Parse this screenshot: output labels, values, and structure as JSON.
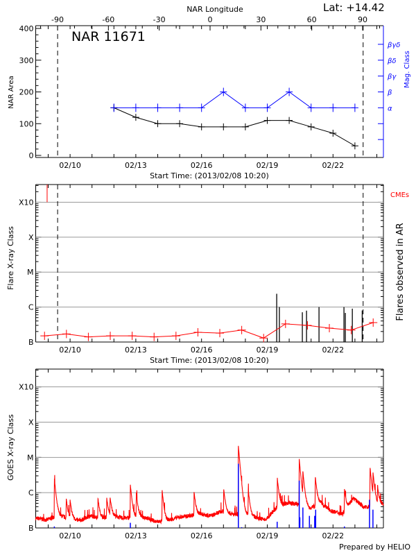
{
  "header": {
    "region_title": "NAR 11671",
    "latitude": "Lat: +14.42",
    "credit": "Prepared by HELIO"
  },
  "colors": {
    "area": "#000000",
    "mag_class": "#0000ff",
    "flares_in_ar": "#ff0000",
    "cme": "#ff0000",
    "flare_bars": "#000000",
    "goes_flux": "#ff0000",
    "goes_events": "#0000ff",
    "grid": "#999999"
  },
  "chart_data": [
    {
      "type": "line",
      "panel": "top",
      "xlabel": "Start Time: (2013/02/08 10:20)",
      "ylabel": "NAR Area",
      "y2label": "Mag. Class",
      "x2label": "NAR Longitude",
      "x_range": [
        "02/08 10:20",
        "02/24 07:15"
      ],
      "x_ticks": [
        "02/10",
        "02/13",
        "02/16",
        "02/19",
        "02/22"
      ],
      "x2_ticks": [
        -90,
        -60,
        -30,
        0,
        30,
        60,
        90
      ],
      "ylim": [
        -7,
        408
      ],
      "y_ticks": [
        0,
        100,
        200,
        300,
        400
      ],
      "y2_ticks": [
        {
          "value": 50,
          "label": ""
        },
        {
          "value": 100,
          "label": ""
        },
        {
          "value": 150,
          "label": "α"
        },
        {
          "value": 200,
          "label": "β"
        },
        {
          "value": 250,
          "label": "βγ"
        },
        {
          "value": 300,
          "label": "βδ"
        },
        {
          "value": 350,
          "label": "βγδ"
        }
      ],
      "limb_lines": [
        {
          "time": "02/09 10:20",
          "longitude": -90
        },
        {
          "time": "02/23 09:00",
          "longitude": 90
        }
      ],
      "x": [
        "02/12 00:00",
        "02/13 00:00",
        "02/14 00:00",
        "02/15 00:00",
        "02/16 00:00",
        "02/17 00:00",
        "02/18 00:00",
        "02/19 00:00",
        "02/20 00:00",
        "02/21 00:00",
        "02/22 00:00",
        "02/23 00:00"
      ],
      "series": [
        {
          "key": "area",
          "values": [
            150,
            120,
            100,
            100,
            90,
            90,
            90,
            110,
            110,
            90,
            70,
            30
          ]
        },
        {
          "key": "mag_class",
          "values": [
            "α",
            "α",
            "α",
            "α",
            "α",
            "β",
            "α",
            "α",
            "β",
            "α",
            "α",
            "α"
          ]
        }
      ]
    },
    {
      "type": "scatter",
      "panel": "middle",
      "xlabel": "Start Time: (2013/02/08 10:20)",
      "ylabel": "Flare X-ray Class",
      "y2label": "Flares observed in AR",
      "cme_label": "CMEs",
      "y_scale": "log",
      "ylim": [
        1e-07,
        0.0032
      ],
      "y_ticks": [
        {
          "value": 1e-07,
          "label": "B"
        },
        {
          "value": 1e-06,
          "label": "C"
        },
        {
          "value": 1e-05,
          "label": "M"
        },
        {
          "value": 0.0001,
          "label": "X"
        },
        {
          "value": 0.001,
          "label": "X10"
        }
      ],
      "x_ticks": [
        "02/10",
        "02/13",
        "02/16",
        "02/19",
        "02/22"
      ],
      "grid": true,
      "daily_flux": {
        "x": [
          "02/08 20:00",
          "02/09 20:00",
          "02/10 20:00",
          "02/11 20:00",
          "02/12 20:00",
          "02/13 20:00",
          "02/14 20:00",
          "02/15 20:00",
          "02/16 20:00",
          "02/17 20:00",
          "02/18 20:00",
          "02/19 20:00",
          "02/20 20:00",
          "02/21 20:00",
          "02/22 20:00",
          "02/23 20:00"
        ],
        "values": [
          1.5e-07,
          1.7e-07,
          1.4e-07,
          1.5e-07,
          1.5e-07,
          1.4e-07,
          1.5e-07,
          1.9e-07,
          1.8e-07,
          2.2e-07,
          1.3e-07,
          3.3e-07,
          3e-07,
          2.5e-07,
          2.2e-07,
          3.6e-07
        ]
      },
      "flares": [
        {
          "time": "02/19 10:20",
          "peak": 2.4e-06
        },
        {
          "time": "02/19 13:15",
          "peak": 1e-06
        },
        {
          "time": "02/20 14:25",
          "peak": 7.1e-07
        },
        {
          "time": "02/20 19:00",
          "peak": 7.9e-07
        },
        {
          "time": "02/21 08:40",
          "peak": 1e-06
        },
        {
          "time": "02/22 12:00",
          "peak": 1e-06
        },
        {
          "time": "02/22 13:30",
          "peak": 6.8e-07
        },
        {
          "time": "02/22 21:10",
          "peak": 9e-07
        },
        {
          "time": "02/23 08:00",
          "peak": 8e-07
        }
      ],
      "cmes": [
        "02/08 22:50"
      ],
      "limb_lines": [
        "02/09 10:20",
        "02/23 09:00"
      ]
    },
    {
      "type": "line",
      "panel": "bottom",
      "ylabel": "GOES X-ray Class",
      "y_scale": "log",
      "ylim": [
        1e-07,
        0.0032
      ],
      "y_ticks": [
        {
          "value": 1e-07,
          "label": "B"
        },
        {
          "value": 1e-06,
          "label": "C"
        },
        {
          "value": 1e-05,
          "label": "M"
        },
        {
          "value": 0.0001,
          "label": "X"
        },
        {
          "value": 0.001,
          "label": "X10"
        }
      ],
      "x_ticks": [
        "02/10",
        "02/13",
        "02/16",
        "02/19",
        "02/22"
      ],
      "grid": true,
      "background": {
        "x": [
          "02/08 10:20",
          "02/08 22:20",
          "02/09 10:20",
          "02/09 22:20",
          "02/10 10:20",
          "02/10 22:20",
          "02/11 10:20",
          "02/11 22:20",
          "02/12 10:20",
          "02/12 22:20",
          "02/13 10:20",
          "02/13 22:20",
          "02/14 10:20",
          "02/14 22:20",
          "02/15 10:20",
          "02/15 22:20",
          "02/16 10:20",
          "02/16 22:20",
          "02/17 10:20",
          "02/17 22:20",
          "02/18 10:20",
          "02/18 22:20",
          "02/19 10:20",
          "02/19 22:20",
          "02/20 10:20",
          "02/20 22:20",
          "02/21 10:20",
          "02/21 22:20",
          "02/22 10:20",
          "02/22 22:20",
          "02/23 10:20",
          "02/23 22:20",
          "02/24 10:20"
        ],
        "values": [
          1.9e-07,
          1.7e-07,
          2.2e-07,
          1.9e-07,
          1.6e-07,
          2.2e-07,
          1.9e-07,
          2.2e-07,
          1.9e-07,
          2e-07,
          2e-07,
          1.5e-07,
          1.6e-07,
          2e-07,
          2.2e-07,
          2.5e-07,
          2.2e-07,
          3e-07,
          2.4e-07,
          2.4e-07,
          2e-07,
          1.7e-07,
          3.8e-07,
          5.1e-07,
          4.7e-07,
          3.5e-07,
          5.1e-07,
          3e-07,
          2.5e-07,
          7e-07,
          3.8e-07,
          4.4e-07,
          4.7e-07
        ]
      },
      "peaks": [
        {
          "time": "02/09 06:45",
          "value": 2.4e-06
        },
        {
          "time": "02/09 19:45",
          "value": 5e-07
        },
        {
          "time": "02/10 00:00",
          "value": 4e-07
        },
        {
          "time": "02/11 06:30",
          "value": 5e-07
        },
        {
          "time": "02/11 16:05",
          "value": 5.2e-07
        },
        {
          "time": "02/11 19:45",
          "value": 5.2e-07
        },
        {
          "time": "02/12 18:00",
          "value": 1.5e-06
        },
        {
          "time": "02/13 00:30",
          "value": 8e-07
        },
        {
          "time": "02/14 04:50",
          "value": 1e-06
        },
        {
          "time": "02/15 15:50",
          "value": 8e-07
        },
        {
          "time": "02/17 00:15",
          "value": 1e-06
        },
        {
          "time": "02/17 16:20",
          "value": 2.1e-05
        },
        {
          "time": "02/18 03:10",
          "value": 1e-06
        },
        {
          "time": "02/19 11:00",
          "value": 2.2e-06
        },
        {
          "time": "02/20 11:00",
          "value": 8.5e-06
        },
        {
          "time": "02/20 15:00",
          "value": 3.1e-06
        },
        {
          "time": "02/21 04:35",
          "value": 2.5e-06
        },
        {
          "time": "02/22 12:30",
          "value": 1e-06
        },
        {
          "time": "02/23 16:35",
          "value": 4.9e-06
        },
        {
          "time": "02/23 19:45",
          "value": 3e-06
        },
        {
          "time": "02/24 00:45",
          "value": 1.1e-06
        }
      ],
      "events": [
        {
          "time": "02/09 06:45",
          "value": 1.1e-07
        },
        {
          "time": "02/12 18:00",
          "value": 1.4e-07
        },
        {
          "time": "02/17 16:20",
          "value": 6.6e-06
        },
        {
          "time": "02/17 19:55",
          "value": 1.05e-07
        },
        {
          "time": "02/19 10:50",
          "value": 1.5e-07
        },
        {
          "time": "02/20 11:00",
          "value": 2.2e-06
        },
        {
          "time": "02/20 11:40",
          "value": 2e-07
        },
        {
          "time": "02/20 15:00",
          "value": 3.8e-07
        },
        {
          "time": "02/20 22:10",
          "value": 2.2e-07
        },
        {
          "time": "02/21 00:00",
          "value": 1.05e-07
        },
        {
          "time": "02/21 03:55",
          "value": 2.2e-07
        },
        {
          "time": "02/21 05:00",
          "value": 3.3e-07
        },
        {
          "time": "02/22 12:30",
          "value": 1.1e-07
        },
        {
          "time": "02/23 16:00",
          "value": 6.3e-07
        },
        {
          "time": "02/23 19:45",
          "value": 3.3e-07
        }
      ]
    }
  ]
}
